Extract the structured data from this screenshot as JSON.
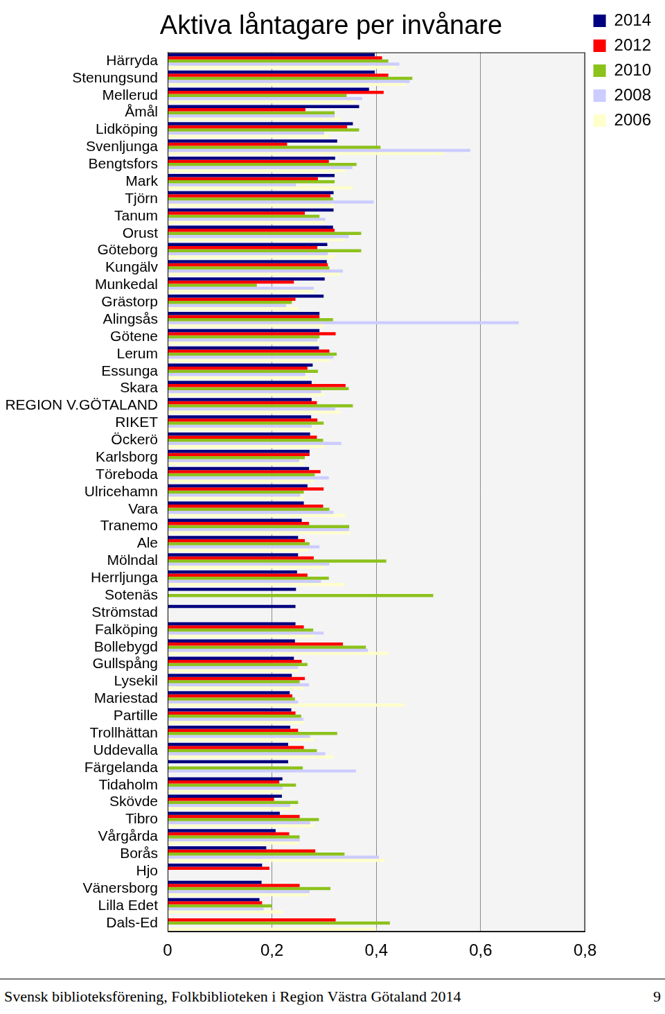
{
  "chart_data": {
    "type": "bar",
    "orientation": "horizontal",
    "title": "Aktiva låntagare per invånare",
    "categories": [
      "Härryda",
      "Stenungsund",
      "Mellerud",
      "Åmål",
      "Lidköping",
      "Svenljunga",
      "Bengtsfors",
      "Mark",
      "Tjörn",
      "Tanum",
      "Orust",
      "Göteborg",
      "Kungälv",
      "Munkedal",
      "Grästorp",
      "Alingsås",
      "Götene",
      "Lerum",
      "Essunga",
      "Skara",
      "REGION V.GÖTALAND",
      "RIKET",
      "Öckerö",
      "Karlsborg",
      "Töreboda",
      "Ulricehamn",
      "Vara",
      "Tranemo",
      "Ale",
      "Mölndal",
      "Herrljunga",
      "Sotenäs",
      "Strömstad",
      "Falköping",
      "Bollebygd",
      "Gullspång",
      "Lysekil",
      "Mariestad",
      "Partille",
      "Trollhättan",
      "Uddevalla",
      "Färgelanda",
      "Tidaholm",
      "Skövde",
      "Tibro",
      "Vårgårda",
      "Borås",
      "Hjo",
      "Vänersborg",
      "Lilla Edet",
      "Dals-Ed"
    ],
    "series": [
      {
        "name": "2014",
        "color": "#000080",
        "values": [
          0.397,
          0.397,
          0.386,
          0.367,
          0.355,
          0.325,
          0.321,
          0.32,
          0.318,
          0.318,
          0.317,
          0.306,
          0.305,
          0.301,
          0.299,
          0.291,
          0.291,
          0.29,
          0.278,
          0.276,
          0.276,
          0.275,
          0.273,
          0.272,
          0.271,
          0.268,
          0.261,
          0.257,
          0.25,
          0.25,
          0.248,
          0.246,
          0.245,
          0.245,
          0.244,
          0.242,
          0.238,
          0.234,
          0.237,
          0.235,
          0.231,
          0.231,
          0.22,
          0.219,
          0.215,
          0.207,
          0.189,
          0.181,
          0.18,
          0.176,
          null
        ]
      },
      {
        "name": "2012",
        "color": "#ff0000",
        "values": [
          0.411,
          0.423,
          0.414,
          0.264,
          0.344,
          0.229,
          0.309,
          0.288,
          0.312,
          0.263,
          0.32,
          0.287,
          0.307,
          0.242,
          0.245,
          0.291,
          0.322,
          0.31,
          0.268,
          0.341,
          0.286,
          0.287,
          0.286,
          0.272,
          0.293,
          0.299,
          0.298,
          0.271,
          0.263,
          0.28,
          0.268,
          null,
          null,
          0.261,
          0.336,
          0.257,
          0.263,
          0.239,
          0.245,
          0.25,
          0.261,
          null,
          0.214,
          0.204,
          0.253,
          0.233,
          0.283,
          0.195,
          0.253,
          0.181,
          0.322
        ]
      },
      {
        "name": "2010",
        "color": "#8cc21c",
        "values": [
          0.423,
          0.469,
          0.343,
          0.32,
          0.367,
          0.408,
          0.362,
          0.32,
          0.317,
          0.291,
          0.371,
          0.371,
          0.31,
          0.171,
          0.238,
          0.317,
          0.291,
          0.324,
          0.288,
          0.347,
          0.355,
          0.299,
          0.298,
          0.263,
          0.282,
          0.261,
          0.31,
          0.348,
          0.272,
          0.419,
          0.309,
          0.509,
          null,
          0.279,
          0.38,
          0.268,
          0.253,
          0.244,
          0.256,
          0.325,
          0.286,
          0.259,
          0.246,
          0.25,
          0.29,
          0.253,
          0.339,
          null,
          0.312,
          0.2,
          0.426
        ]
      },
      {
        "name": "2008",
        "color": "#ccccff",
        "values": [
          0.444,
          0.464,
          0.373,
          0.32,
          0.3,
          0.58,
          0.354,
          0.246,
          0.395,
          0.302,
          0.347,
          0.307,
          0.336,
          0.28,
          0.227,
          0.673,
          0.287,
          0.318,
          0.264,
          0.294,
          0.321,
          0.276,
          0.333,
          0.252,
          0.309,
          0.254,
          0.318,
          0.348,
          0.291,
          0.31,
          0.294,
          null,
          null,
          0.299,
          0.384,
          0.25,
          0.271,
          0.25,
          0.26,
          0.273,
          0.302,
          0.361,
          0.22,
          0.235,
          0.273,
          0.253,
          0.405,
          null,
          0.272,
          0.184,
          null
        ]
      },
      {
        "name": "2006",
        "color": "#ffffcc",
        "values": [
          0.437,
          0.457,
          0.36,
          0.33,
          0.31,
          0.529,
          0.34,
          0.355,
          0.32,
          0.3,
          0.34,
          0.32,
          0.33,
          0.28,
          0.25,
          0.3,
          0.29,
          0.31,
          0.27,
          0.3,
          0.33,
          0.28,
          0.3,
          0.26,
          0.28,
          0.26,
          0.34,
          0.35,
          0.27,
          0.3,
          0.34,
          null,
          null,
          0.28,
          0.423,
          0.25,
          0.26,
          0.454,
          0.26,
          0.28,
          0.318,
          null,
          0.22,
          0.24,
          0.28,
          0.25,
          0.416,
          null,
          0.27,
          0.219,
          0.4
        ]
      }
    ],
    "xlim": [
      0,
      0.8
    ],
    "xticks": [
      {
        "value": 0,
        "label": "0"
      },
      {
        "value": 0.2,
        "label": "0,2"
      },
      {
        "value": 0.4,
        "label": "0,4"
      },
      {
        "value": 0.6,
        "label": "0,6"
      },
      {
        "value": 0.8,
        "label": "0,8"
      }
    ],
    "grid": true,
    "legend": "right"
  },
  "footer": {
    "text": "Svensk biblioteksförening, Folkbiblioteken i Region Västra Götaland 2014",
    "page": "9"
  }
}
